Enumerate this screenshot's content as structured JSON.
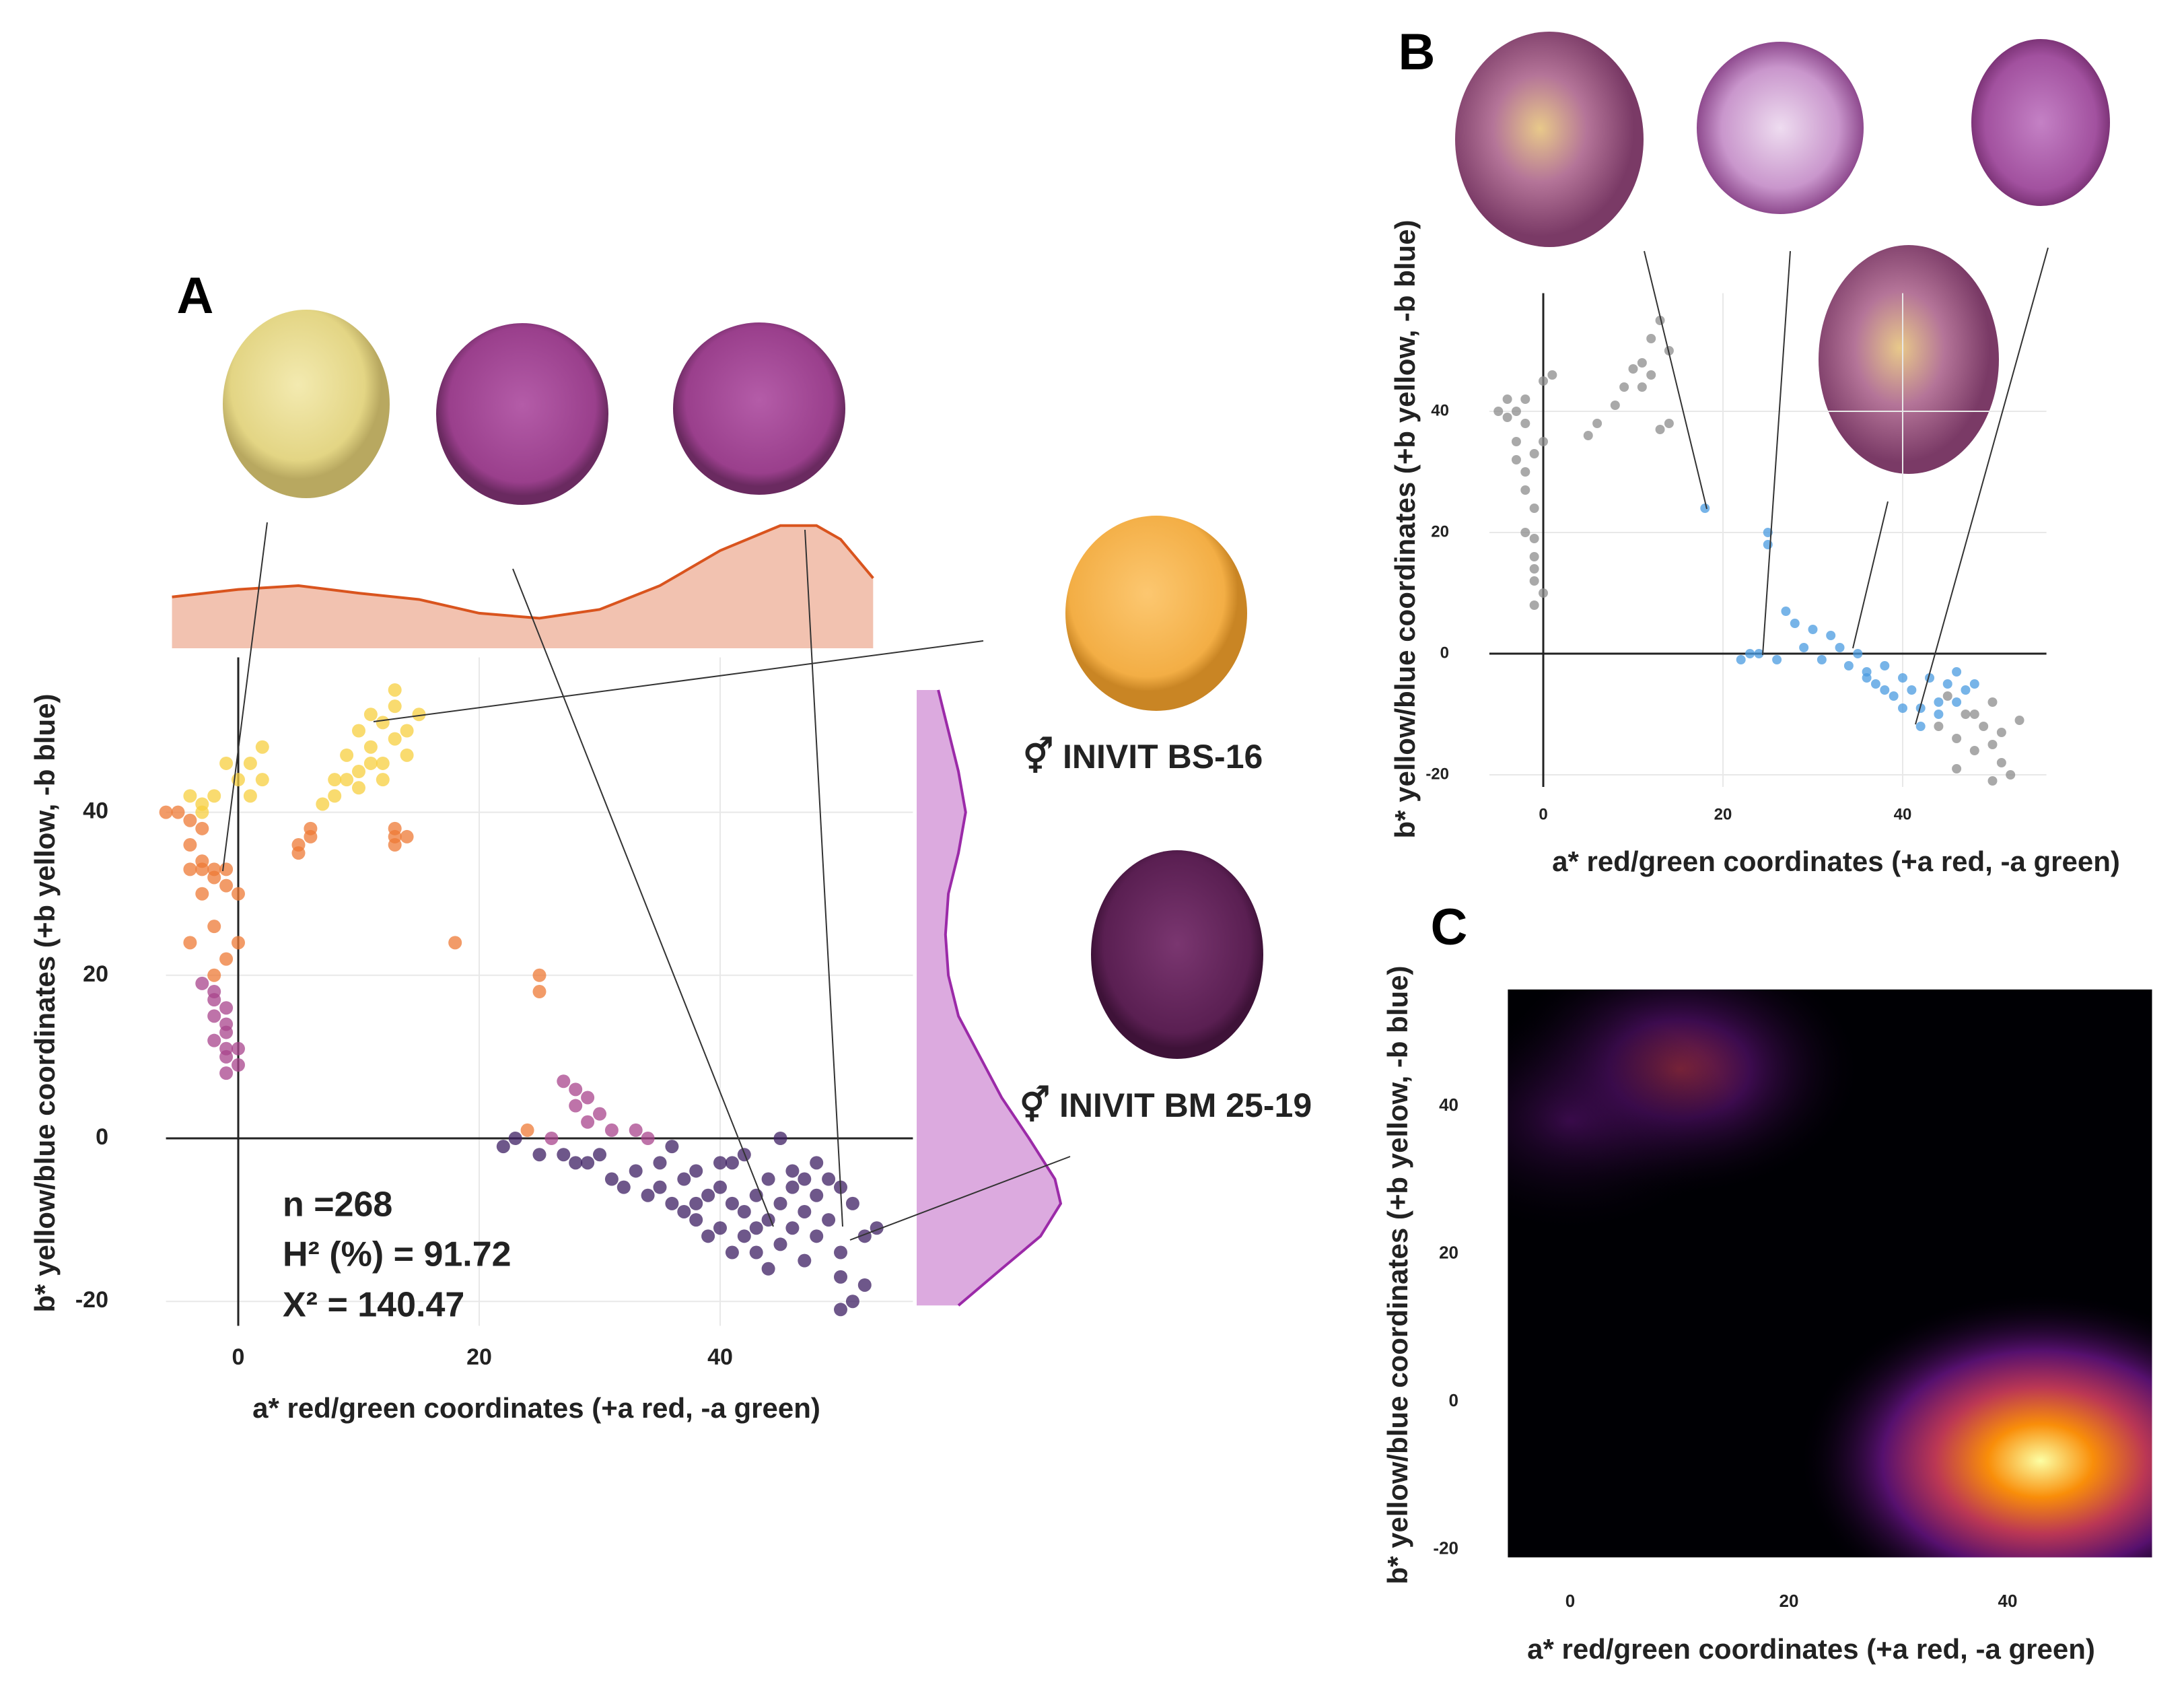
{
  "chart_data": [
    {
      "type": "scatter",
      "panel": "A",
      "xlabel": "a* red/green coordinates (+a red, -a green)",
      "ylabel": "b* yellow/blue coordinates (+b yellow, -b blue)",
      "xlim": [
        -6,
        56
      ],
      "ylim": [
        -23,
        59
      ],
      "xticks": [
        0,
        20,
        40
      ],
      "yticks": [
        -20,
        0,
        20,
        40
      ],
      "grid": true,
      "annotations": [
        "n =268",
        "H² (%) = 91.72",
        "X² = 140.47"
      ],
      "labels": [
        "⚥ INIVIT BS-16",
        "⚥ INIVIT BM 25-19"
      ],
      "series": [
        {
          "color": "#f7cf3f",
          "x": [
            -4,
            -3,
            -2,
            -3,
            -1,
            0,
            1,
            1,
            2,
            2,
            8,
            9,
            9,
            10,
            10,
            11,
            11,
            12,
            12,
            13,
            13,
            14,
            14,
            15,
            8,
            7,
            10,
            12,
            13,
            11
          ],
          "values": [
            42,
            41,
            42,
            40,
            46,
            44,
            46,
            42,
            44,
            48,
            42,
            44,
            47,
            45,
            50,
            52,
            48,
            51,
            46,
            53,
            55,
            50,
            47,
            52,
            44,
            41,
            43,
            44,
            49,
            46
          ]
        },
        {
          "color": "#ee7a35",
          "x": [
            -6,
            -5,
            -4,
            -4,
            -3,
            -3,
            -2,
            -2,
            -1,
            -1,
            0,
            -4,
            -3,
            -2,
            -4,
            -1,
            0,
            -2,
            5,
            5,
            6,
            6,
            13,
            13,
            14,
            13,
            18,
            25,
            25,
            24,
            -3
          ],
          "values": [
            40,
            40,
            39,
            36,
            38,
            34,
            33,
            32,
            31,
            33,
            30,
            33,
            30,
            26,
            24,
            22,
            24,
            20,
            35,
            36,
            37,
            38,
            38,
            37,
            37,
            36,
            24,
            20,
            18,
            1,
            33
          ]
        },
        {
          "color": "#a8448c",
          "x": [
            -3,
            -2,
            -2,
            -1,
            -2,
            -1,
            -2,
            -1,
            -1,
            0,
            0,
            -1,
            27,
            28,
            29,
            30,
            28,
            33,
            34,
            26,
            31,
            -1,
            29
          ],
          "values": [
            19,
            18,
            17,
            16,
            15,
            14,
            12,
            11,
            10,
            11,
            9,
            8,
            7,
            6,
            5,
            3,
            4,
            1,
            0,
            0,
            1,
            13,
            2
          ]
        },
        {
          "color": "#3d1f63",
          "x": [
            22,
            23,
            25,
            27,
            28,
            29,
            31,
            32,
            33,
            35,
            35,
            36,
            37,
            37,
            38,
            38,
            39,
            40,
            40,
            41,
            41,
            42,
            42,
            43,
            43,
            44,
            44,
            45,
            45,
            46,
            46,
            46,
            47,
            47,
            48,
            48,
            49,
            49,
            50,
            50,
            50,
            51,
            51,
            52,
            52,
            53,
            50,
            45,
            39,
            34,
            36,
            30,
            42,
            48,
            44,
            38,
            40,
            47,
            43,
            41
          ],
          "values": [
            -1,
            0,
            -2,
            -2,
            -3,
            -3,
            -5,
            -6,
            -4,
            -3,
            -6,
            -8,
            -5,
            -9,
            -4,
            -10,
            -7,
            -6,
            -11,
            -8,
            -3,
            -9,
            -12,
            -7,
            -14,
            -5,
            -10,
            -8,
            -13,
            -6,
            -11,
            -4,
            -9,
            -15,
            -7,
            -12,
            -5,
            -10,
            -6,
            -14,
            -17,
            -8,
            -20,
            -12,
            -18,
            -11,
            -21,
            0,
            -12,
            -7,
            -1,
            -2,
            -2,
            -3,
            -16,
            -8,
            -3,
            -5,
            -11,
            -14
          ]
        }
      ],
      "x_density": {
        "color": "#d9541e",
        "fill": "#f2c2b0",
        "x": [
          -5.5,
          0,
          5,
          10,
          15,
          20,
          25,
          30,
          35,
          40,
          45,
          48,
          50,
          52.7
        ],
        "values": [
          0.41,
          0.47,
          0.5,
          0.44,
          0.39,
          0.28,
          0.24,
          0.31,
          0.5,
          0.78,
          0.98,
          0.98,
          0.87,
          0.56
        ]
      },
      "y_density": {
        "color": "#9b2aa8",
        "fill": "#dcaadf",
        "y": [
          55,
          50,
          45,
          40,
          35,
          30,
          25,
          20,
          15,
          10,
          5,
          0,
          -5,
          -8,
          -12,
          -16,
          -20.5
        ],
        "values": [
          0.15,
          0.22,
          0.29,
          0.34,
          0.29,
          0.22,
          0.2,
          0.22,
          0.29,
          0.44,
          0.59,
          0.78,
          0.96,
          1,
          0.86,
          0.59,
          0.29
        ]
      }
    },
    {
      "type": "scatter",
      "panel": "B",
      "xlabel": "a* red/green coordinates (+a red, -a green)",
      "ylabel": "b* yellow/blue coordinates (+b yellow, -b blue)",
      "xlim": [
        -6,
        56
      ],
      "ylim": [
        -22,
        59.5
      ],
      "xticks": [
        0,
        20,
        40
      ],
      "yticks": [
        -20,
        0,
        20,
        40
      ],
      "grid": true,
      "series": [
        {
          "color": "#8c8c8c",
          "x": [
            44,
            46,
            48,
            50,
            51,
            52,
            50,
            49,
            47,
            45,
            53,
            50,
            51,
            48,
            46,
            -4,
            -3,
            -2,
            -3,
            -1,
            -2,
            -1,
            -2,
            -1,
            -1,
            0,
            -1,
            0,
            1,
            -4,
            -3,
            -2,
            -1,
            5,
            6,
            8,
            9,
            10,
            11,
            12,
            13,
            14,
            12,
            13,
            14,
            11,
            -5,
            -2,
            -1,
            0
          ],
          "values": [
            -12,
            -14,
            -10,
            -15,
            -18,
            -20,
            -21,
            -12,
            -10,
            -7,
            -11,
            -8,
            -13,
            -16,
            -19,
            42,
            40,
            38,
            35,
            33,
            30,
            24,
            20,
            16,
            12,
            10,
            8,
            45,
            46,
            39,
            32,
            27,
            19,
            36,
            38,
            41,
            44,
            47,
            48,
            52,
            55,
            50,
            46,
            37,
            38,
            44,
            40,
            42,
            14,
            35
          ]
        },
        {
          "color": "#4a9be0",
          "x": [
            18,
            25,
            25,
            24,
            22,
            23,
            27,
            28,
            30,
            32,
            33,
            35,
            36,
            37,
            38,
            39,
            40,
            41,
            42,
            43,
            44,
            45,
            46,
            47,
            48,
            38,
            34,
            36,
            40,
            42,
            29,
            31,
            44,
            46,
            26
          ],
          "values": [
            24,
            20,
            18,
            0,
            -1,
            0,
            7,
            5,
            4,
            3,
            1,
            0,
            -3,
            -5,
            -2,
            -7,
            -4,
            -6,
            -9,
            -4,
            -8,
            -5,
            -3,
            -6,
            -5,
            -6,
            -2,
            -4,
            -9,
            -12,
            1,
            -1,
            -10,
            -8,
            -1
          ]
        }
      ]
    },
    {
      "type": "density2d",
      "panel": "C",
      "xlabel": "a* red/green coordinates (+a red, -a green)",
      "ylabel": "b* yellow/blue coordinates (+b yellow, -b blue)",
      "xlim": [
        -5.7,
        53.2
      ],
      "ylim": [
        -21.1,
        55.8
      ],
      "xticks": [
        0,
        20,
        40
      ],
      "yticks": [
        -20,
        0,
        20,
        40
      ],
      "colormap": [
        "#000004",
        "#56106e",
        "#bb3754",
        "#f98e09",
        "#fcffa4"
      ],
      "x": [
        43,
        10,
        0
      ],
      "y": [
        -8,
        45,
        38
      ],
      "values": [
        1,
        0.4,
        0.2
      ]
    }
  ]
}
